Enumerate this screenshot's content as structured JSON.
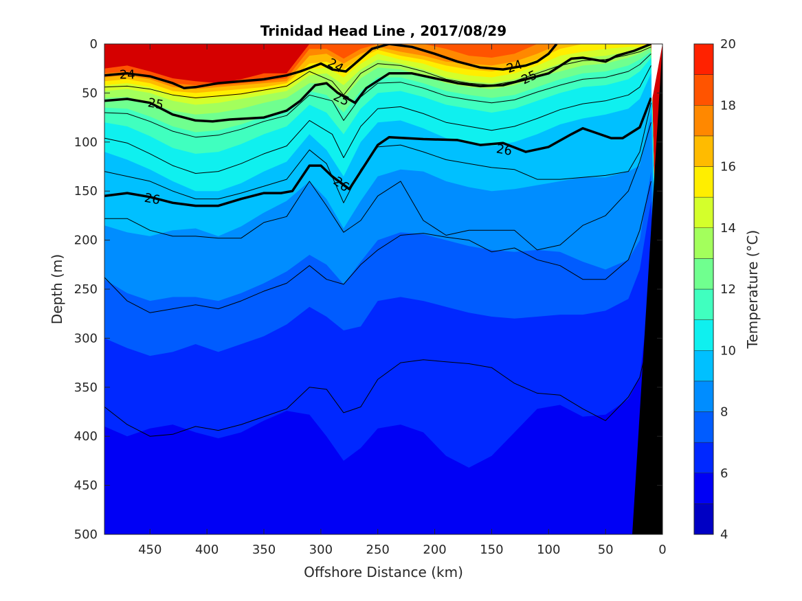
{
  "chart_data": {
    "type": "heatmap",
    "title": "Trinidad Head Line , 2017/08/29",
    "xlabel": "Offshore Distance (km)",
    "ylabel": "Depth (m)",
    "colorbar_label": "Temperature (°C)",
    "xlim": [
      490,
      0
    ],
    "ylim": [
      0,
      500
    ],
    "x_reversed": true,
    "y_reversed": true,
    "xticks": [
      450,
      400,
      350,
      300,
      250,
      200,
      150,
      100,
      50,
      0
    ],
    "yticks": [
      0,
      50,
      100,
      150,
      200,
      250,
      300,
      350,
      400,
      450,
      500
    ],
    "colorbar": {
      "range": [
        4,
        20
      ],
      "ticks": [
        4,
        6,
        8,
        10,
        12,
        14,
        16,
        18,
        20
      ],
      "levels": [
        4,
        5,
        6,
        7,
        8,
        9,
        10,
        11,
        12,
        13,
        14,
        15,
        16,
        17,
        18,
        19,
        20
      ],
      "colors": [
        "#00008f",
        "#0000c4",
        "#0000f5",
        "#0028ff",
        "#005cff",
        "#008dff",
        "#00c0ff",
        "#0ff0ef",
        "#40ffbf",
        "#70ff8f",
        "#a3ff5c",
        "#d4ff2b",
        "#ffee00",
        "#ffbb00",
        "#ff8800",
        "#ff5400",
        "#ff2200",
        "#d50000",
        "#9f0000"
      ]
    },
    "x_stations": [
      490,
      470,
      450,
      430,
      410,
      390,
      370,
      350,
      330,
      310,
      295,
      280,
      265,
      250,
      230,
      210,
      190,
      170,
      150,
      130,
      110,
      90,
      70,
      50,
      30,
      20,
      10
    ],
    "temperature_isotherm_depths": [
      {
        "temp": 18,
        "depth": [
          25,
          22,
          28,
          35,
          38,
          40,
          36,
          30,
          30,
          0,
          0,
          0,
          0,
          0,
          0,
          0,
          0,
          0,
          0,
          0,
          0,
          0,
          0,
          0,
          0,
          0,
          0
        ]
      },
      {
        "temp": 17,
        "depth": [
          30,
          28,
          32,
          40,
          42,
          42,
          40,
          38,
          35,
          5,
          5,
          15,
          5,
          0,
          0,
          0,
          5,
          12,
          14,
          10,
          0,
          0,
          0,
          0,
          0,
          0,
          0
        ]
      },
      {
        "temp": 16,
        "depth": [
          34,
          32,
          36,
          44,
          46,
          44,
          42,
          40,
          38,
          12,
          10,
          20,
          10,
          3,
          8,
          12,
          18,
          20,
          22,
          18,
          10,
          0,
          0,
          0,
          0,
          0,
          0
        ]
      },
      {
        "temp": 15,
        "depth": [
          38,
          36,
          40,
          48,
          50,
          48,
          46,
          44,
          40,
          20,
          18,
          26,
          14,
          6,
          12,
          16,
          22,
          26,
          28,
          24,
          16,
          5,
          0,
          0,
          0,
          0,
          0
        ]
      },
      {
        "temp": 14,
        "depth": [
          42,
          40,
          44,
          52,
          56,
          54,
          52,
          48,
          44,
          26,
          24,
          34,
          20,
          10,
          16,
          20,
          28,
          32,
          34,
          30,
          22,
          12,
          8,
          5,
          3,
          3,
          0
        ]
      },
      {
        "temp": 13,
        "depth": [
          48,
          46,
          50,
          58,
          62,
          60,
          56,
          52,
          48,
          32,
          30,
          42,
          26,
          16,
          20,
          26,
          34,
          38,
          40,
          36,
          28,
          20,
          14,
          12,
          8,
          6,
          2
        ]
      },
      {
        "temp": 12,
        "depth": [
          55,
          54,
          60,
          68,
          72,
          70,
          66,
          60,
          55,
          40,
          40,
          55,
          35,
          24,
          26,
          32,
          40,
          44,
          46,
          42,
          34,
          28,
          22,
          20,
          14,
          10,
          4
        ]
      },
      {
        "temp": 11,
        "depth": [
          65,
          66,
          74,
          84,
          90,
          88,
          82,
          74,
          68,
          48,
          52,
          70,
          48,
          34,
          34,
          40,
          48,
          52,
          55,
          52,
          44,
          36,
          30,
          28,
          22,
          16,
          8
        ]
      },
      {
        "temp": 10,
        "depth": [
          80,
          84,
          94,
          106,
          112,
          110,
          102,
          92,
          84,
          62,
          70,
          92,
          66,
          50,
          48,
          54,
          62,
          66,
          70,
          66,
          58,
          50,
          44,
          42,
          36,
          28,
          14
        ]
      },
      {
        "temp": 9,
        "depth": [
          110,
          118,
          128,
          140,
          150,
          150,
          142,
          130,
          120,
          92,
          108,
          135,
          100,
          80,
          78,
          86,
          96,
          100,
          104,
          100,
          92,
          82,
          76,
          72,
          66,
          56,
          30
        ]
      },
      {
        "temp": 8,
        "depth": [
          185,
          192,
          196,
          190,
          188,
          196,
          186,
          172,
          160,
          140,
          158,
          188,
          160,
          135,
          128,
          130,
          140,
          146,
          150,
          148,
          144,
          140,
          136,
          136,
          130,
          124,
          70
        ]
      },
      {
        "temp": 7,
        "depth": [
          240,
          254,
          262,
          258,
          258,
          262,
          254,
          244,
          232,
          215,
          225,
          245,
          222,
          200,
          192,
          194,
          200,
          206,
          210,
          212,
          210,
          212,
          222,
          230,
          220,
          200,
          130
        ]
      },
      {
        "temp": 6,
        "depth": [
          300,
          310,
          318,
          314,
          306,
          314,
          306,
          298,
          286,
          268,
          278,
          292,
          288,
          262,
          258,
          262,
          268,
          274,
          278,
          280,
          278,
          276,
          276,
          272,
          260,
          230,
          160
        ]
      },
      {
        "temp": 5,
        "depth": [
          390,
          400,
          392,
          388,
          396,
          402,
          396,
          384,
          374,
          378,
          400,
          425,
          412,
          392,
          388,
          396,
          420,
          432,
          420,
          396,
          372,
          368,
          380,
          378,
          362,
          340,
          240
        ]
      },
      {
        "temp": 4,
        "depth": [
          500,
          500,
          500,
          500,
          500,
          500,
          500,
          500,
          500,
          500,
          500,
          500,
          500,
          500,
          500,
          500,
          500,
          500,
          500,
          500,
          500,
          500,
          500,
          500,
          500,
          500,
          500
        ]
      }
    ],
    "density_contours": [
      {
        "label": "24",
        "bold": true,
        "x": [
          490,
          470,
          450,
          430,
          420,
          410,
          390,
          370,
          350,
          330,
          318,
          300,
          290,
          278,
          270,
          255,
          240,
          220,
          200,
          180,
          160,
          140,
          120,
          110,
          100,
          93
        ],
        "depth": [
          32,
          30,
          33,
          40,
          45,
          44,
          40,
          38,
          36,
          32,
          28,
          20,
          26,
          28,
          20,
          5,
          0,
          3,
          10,
          18,
          24,
          26,
          22,
          18,
          10,
          0
        ]
      },
      {
        "label": "25",
        "bold": true,
        "x": [
          490,
          470,
          450,
          430,
          410,
          395,
          380,
          350,
          330,
          318,
          305,
          295,
          285,
          270,
          260,
          240,
          220,
          200,
          180,
          160,
          140,
          120,
          100,
          80,
          70,
          50,
          40,
          25,
          10
        ],
        "depth": [
          58,
          56,
          60,
          72,
          78,
          79,
          77,
          75,
          68,
          58,
          42,
          40,
          50,
          60,
          45,
          30,
          30,
          35,
          40,
          43,
          42,
          36,
          30,
          15,
          14,
          18,
          12,
          7,
          0
        ]
      },
      {
        "label": "26",
        "bold": true,
        "x": [
          490,
          470,
          450,
          430,
          410,
          390,
          370,
          350,
          335,
          325,
          310,
          300,
          290,
          275,
          265,
          250,
          240,
          210,
          180,
          160,
          140,
          120,
          100,
          80,
          70,
          60,
          45,
          35,
          20,
          10
        ],
        "depth": [
          155,
          152,
          156,
          162,
          165,
          165,
          158,
          152,
          152,
          150,
          124,
          124,
          135,
          148,
          130,
          103,
          95,
          97,
          98,
          103,
          101,
          110,
          105,
          92,
          86,
          90,
          96,
          96,
          85,
          55
        ]
      },
      {
        "label": "",
        "bold": false,
        "x": [
          490,
          470,
          450,
          430,
          410,
          390,
          370,
          350,
          330,
          310,
          290,
          280,
          265,
          250,
          230,
          210,
          190,
          170,
          150,
          130,
          110,
          90,
          70,
          50,
          30,
          20,
          10
        ],
        "depth": [
          44,
          43,
          46,
          52,
          55,
          53,
          51,
          47,
          43,
          28,
          38,
          52,
          30,
          20,
          22,
          28,
          36,
          40,
          42,
          38,
          30,
          22,
          17,
          16,
          11,
          8,
          3
        ]
      },
      {
        "label": "",
        "bold": false,
        "x": [
          490,
          470,
          450,
          430,
          410,
          390,
          370,
          350,
          330,
          310,
          290,
          280,
          265,
          250,
          230,
          210,
          190,
          170,
          150,
          130,
          110,
          90,
          70,
          50,
          30,
          20,
          10
        ],
        "depth": [
          70,
          71,
          79,
          89,
          95,
          93,
          87,
          79,
          73,
          52,
          58,
          78,
          54,
          40,
          39,
          45,
          53,
          57,
          60,
          57,
          49,
          42,
          36,
          34,
          28,
          21,
          10
        ]
      },
      {
        "label": "",
        "bold": false,
        "x": [
          490,
          470,
          450,
          430,
          410,
          390,
          370,
          350,
          330,
          310,
          290,
          280,
          265,
          250,
          230,
          210,
          190,
          170,
          150,
          130,
          110,
          90,
          70,
          50,
          30,
          20,
          10
        ],
        "depth": [
          96,
          101,
          112,
          124,
          132,
          130,
          122,
          112,
          104,
          78,
          92,
          116,
          84,
          66,
          64,
          71,
          80,
          84,
          88,
          84,
          76,
          67,
          61,
          58,
          52,
          44,
          22
        ]
      },
      {
        "label": "",
        "bold": false,
        "x": [
          490,
          470,
          450,
          430,
          410,
          390,
          370,
          350,
          330,
          310,
          295,
          280,
          265,
          250,
          230,
          210,
          190,
          170,
          150,
          130,
          110,
          90,
          70,
          50,
          30,
          20,
          10
        ],
        "depth": [
          130,
          135,
          140,
          150,
          158,
          158,
          152,
          145,
          138,
          108,
          122,
          162,
          128,
          105,
          103,
          110,
          118,
          122,
          126,
          128,
          138,
          138,
          136,
          134,
          130,
          110,
          60
        ]
      },
      {
        "label": "",
        "bold": false,
        "x": [
          490,
          470,
          450,
          430,
          410,
          390,
          370,
          350,
          330,
          310,
          295,
          280,
          265,
          250,
          230,
          210,
          190,
          170,
          150,
          130,
          110,
          90,
          70,
          50,
          30,
          20,
          10
        ],
        "depth": [
          178,
          178,
          190,
          196,
          196,
          198,
          198,
          182,
          176,
          140,
          165,
          192,
          180,
          155,
          140,
          180,
          195,
          190,
          190,
          190,
          210,
          205,
          185,
          175,
          150,
          120,
          80
        ]
      },
      {
        "label": "",
        "bold": false,
        "x": [
          490,
          470,
          450,
          430,
          410,
          390,
          370,
          350,
          330,
          310,
          295,
          280,
          265,
          250,
          230,
          210,
          190,
          170,
          150,
          130,
          110,
          90,
          70,
          50,
          30,
          20,
          10
        ],
        "depth": [
          238,
          262,
          274,
          270,
          266,
          270,
          262,
          252,
          244,
          226,
          240,
          245,
          225,
          210,
          195,
          193,
          197,
          200,
          212,
          208,
          220,
          226,
          240,
          240,
          220,
          190,
          140
        ]
      },
      {
        "label": "",
        "bold": false,
        "x": [
          490,
          470,
          450,
          430,
          410,
          390,
          370,
          350,
          330,
          310,
          295,
          280,
          265,
          250,
          230,
          210,
          190,
          170,
          150,
          130,
          110,
          90,
          70,
          50,
          30,
          20,
          10
        ],
        "depth": [
          370,
          388,
          400,
          398,
          390,
          394,
          388,
          380,
          372,
          350,
          352,
          376,
          370,
          342,
          325,
          322,
          324,
          326,
          330,
          346,
          356,
          358,
          372,
          384,
          360,
          340,
          290
        ]
      }
    ]
  }
}
